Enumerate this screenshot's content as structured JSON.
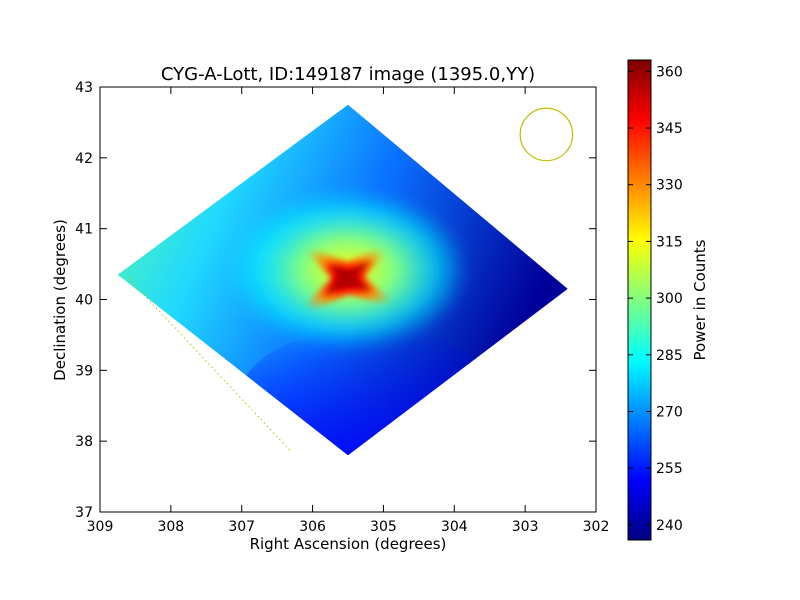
{
  "chart_data": {
    "type": "heatmap",
    "title": "CYG-A-Lott, ID:149187 image (1395.0,YY)",
    "xlabel": "Right Ascension (degrees)",
    "ylabel": "Declination (degrees)",
    "colorbar_label": "Power in Counts",
    "xlim": [
      309,
      302
    ],
    "ylim": [
      37,
      43
    ],
    "xticks": [
      "309",
      "308",
      "307",
      "306",
      "305",
      "304",
      "303",
      "302"
    ],
    "yticks": [
      "37",
      "38",
      "39",
      "40",
      "41",
      "42",
      "43"
    ],
    "color_range": [
      236,
      363
    ],
    "colorbar_ticks": [
      "240",
      "255",
      "270",
      "285",
      "300",
      "315",
      "330",
      "345",
      "360"
    ],
    "colormap": [
      "#00007f",
      "#0000ff",
      "#007fff",
      "#00ffff",
      "#7fff7f",
      "#ffff00",
      "#ff7f00",
      "#ff0000",
      "#7f0000"
    ],
    "footprint": [
      [
        305.5,
        42.75
      ],
      [
        308.75,
        40.35
      ],
      [
        305.5,
        37.8
      ],
      [
        302.4,
        40.15
      ]
    ],
    "source_peak": {
      "ra": 305.5,
      "dec": 40.3,
      "value": 362
    },
    "beam_circle": {
      "ra": 302.7,
      "dec": 42.33,
      "radius_deg": 0.37,
      "color": "#bfbf00"
    },
    "track_line": {
      "from": [
        308.6,
        40.3
      ],
      "to": [
        306.3,
        37.85
      ],
      "color": "#bfbf00"
    }
  }
}
